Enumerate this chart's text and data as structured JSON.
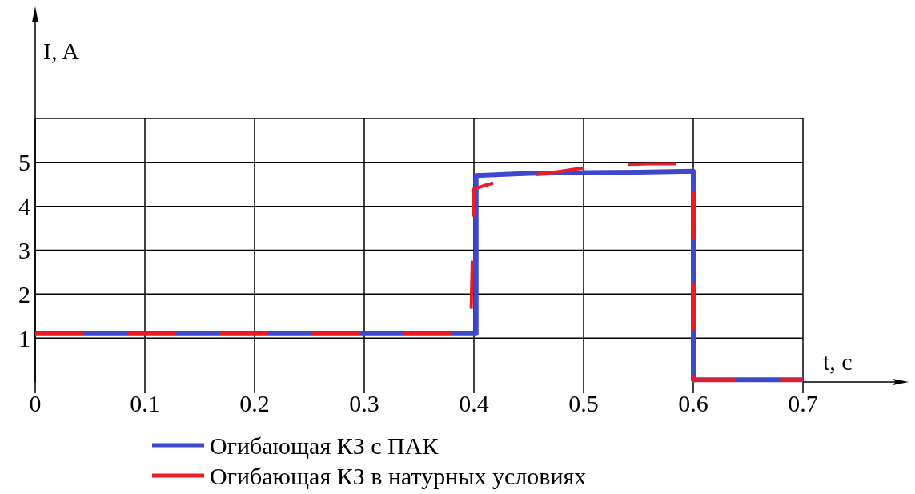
{
  "chart_data": {
    "type": "line",
    "xlabel": "t, c",
    "ylabel": "I, A",
    "xlim": [
      0,
      0.7
    ],
    "xticks": [
      0,
      0.1,
      0.2,
      0.3,
      0.4,
      0.5,
      0.6,
      0.7
    ],
    "ylim": [
      0,
      6
    ],
    "yticks": [
      1,
      2,
      3,
      4,
      5,
      {
        "value": 6,
        "label": null
      }
    ],
    "grid": true,
    "legend": "bottom",
    "series": [
      {
        "name": "Огибающая КЗ с ПАК",
        "color": "#3f48cc",
        "line_style": "solid",
        "x": [
          0,
          0.402,
          0.402,
          0.45,
          0.5,
          0.55,
          0.6,
          0.6,
          0.7
        ],
        "values": [
          1.1,
          1.1,
          4.7,
          4.75,
          4.77,
          4.78,
          4.8,
          0.05,
          0.05
        ]
      },
      {
        "name": "Огибающая КЗ в натурных условиях",
        "color": "#ed1c24",
        "line_style": "dashed",
        "x": [
          0,
          0.397,
          0.397,
          0.4,
          0.42,
          0.45,
          0.48,
          0.5,
          0.53,
          0.56,
          0.6,
          0.6,
          0.7
        ],
        "values": [
          1.1,
          1.1,
          1.1,
          4.4,
          4.55,
          4.7,
          4.8,
          4.88,
          4.95,
          4.97,
          4.97,
          0.05,
          0.05
        ]
      }
    ]
  }
}
